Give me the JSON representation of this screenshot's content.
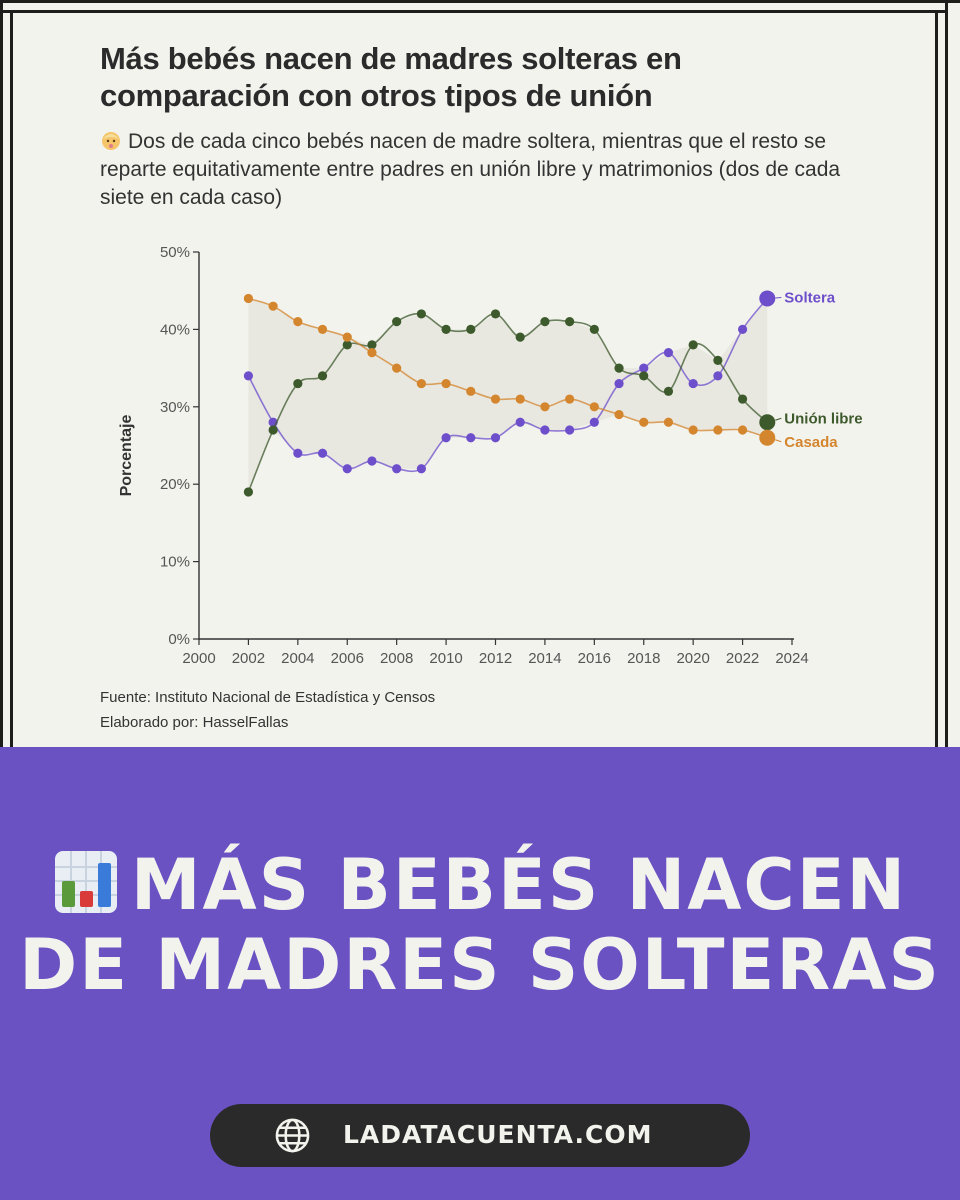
{
  "card": {
    "title": "Más bebés nacen de madres solteras en comparación con otros tipos de unión",
    "subtitle": "Dos de cada cinco bebés nacen de madre soltera, mientras que el resto se reparte equitativamente entre padres en unión libre y matrimonios (dos de cada siete en cada caso)",
    "source": "Fuente: Instituto Nacional de Estadística y Censos",
    "author": "Elaborado por: HasselFallas"
  },
  "chart_data": {
    "type": "line",
    "title": "Más bebés nacen de madres solteras en comparación con otros tipos de unión",
    "xlabel": "",
    "ylabel": "Porcentaje",
    "xlim": [
      2000,
      2024
    ],
    "ylim": [
      0,
      50
    ],
    "x_ticks": [
      2000,
      2002,
      2004,
      2006,
      2008,
      2010,
      2012,
      2014,
      2016,
      2018,
      2020,
      2022,
      2024
    ],
    "y_ticks": [
      0,
      10,
      20,
      30,
      40,
      50
    ],
    "y_tick_labels": [
      "0%",
      "10%",
      "20%",
      "30%",
      "40%",
      "50%"
    ],
    "grid": false,
    "legend": "direct labels at line ends",
    "x": [
      2002,
      2003,
      2004,
      2005,
      2006,
      2007,
      2008,
      2009,
      2010,
      2011,
      2012,
      2013,
      2014,
      2015,
      2016,
      2017,
      2018,
      2019,
      2020,
      2021,
      2022,
      2023
    ],
    "series": [
      {
        "name": "Soltera",
        "color": "#6e4fcb",
        "values": [
          34,
          28,
          24,
          24,
          22,
          23,
          22,
          22,
          26,
          26,
          26,
          28,
          27,
          27,
          28,
          33,
          35,
          37,
          33,
          34,
          40,
          44
        ]
      },
      {
        "name": "Unión libre",
        "color": "#3d5a2c",
        "values": [
          19,
          27,
          33,
          34,
          38,
          38,
          41,
          42,
          40,
          40,
          42,
          39,
          41,
          41,
          40,
          35,
          34,
          32,
          38,
          36,
          31,
          28
        ]
      },
      {
        "name": "Casada",
        "color": "#d4862e",
        "values": [
          44,
          43,
          41,
          40,
          39,
          37,
          35,
          33,
          33,
          32,
          31,
          31,
          30,
          31,
          30,
          29,
          28,
          28,
          27,
          27,
          27,
          26
        ]
      }
    ]
  },
  "banner": {
    "line1": "MÁS BEBÉS NACEN",
    "line2": "DE MADRES SOLTERAS",
    "website": "LADATACUENTA.COM"
  },
  "colors": {
    "accent_purple": "#6a52c2",
    "background": "#f3f3ee",
    "pill": "#2a2a2a"
  }
}
